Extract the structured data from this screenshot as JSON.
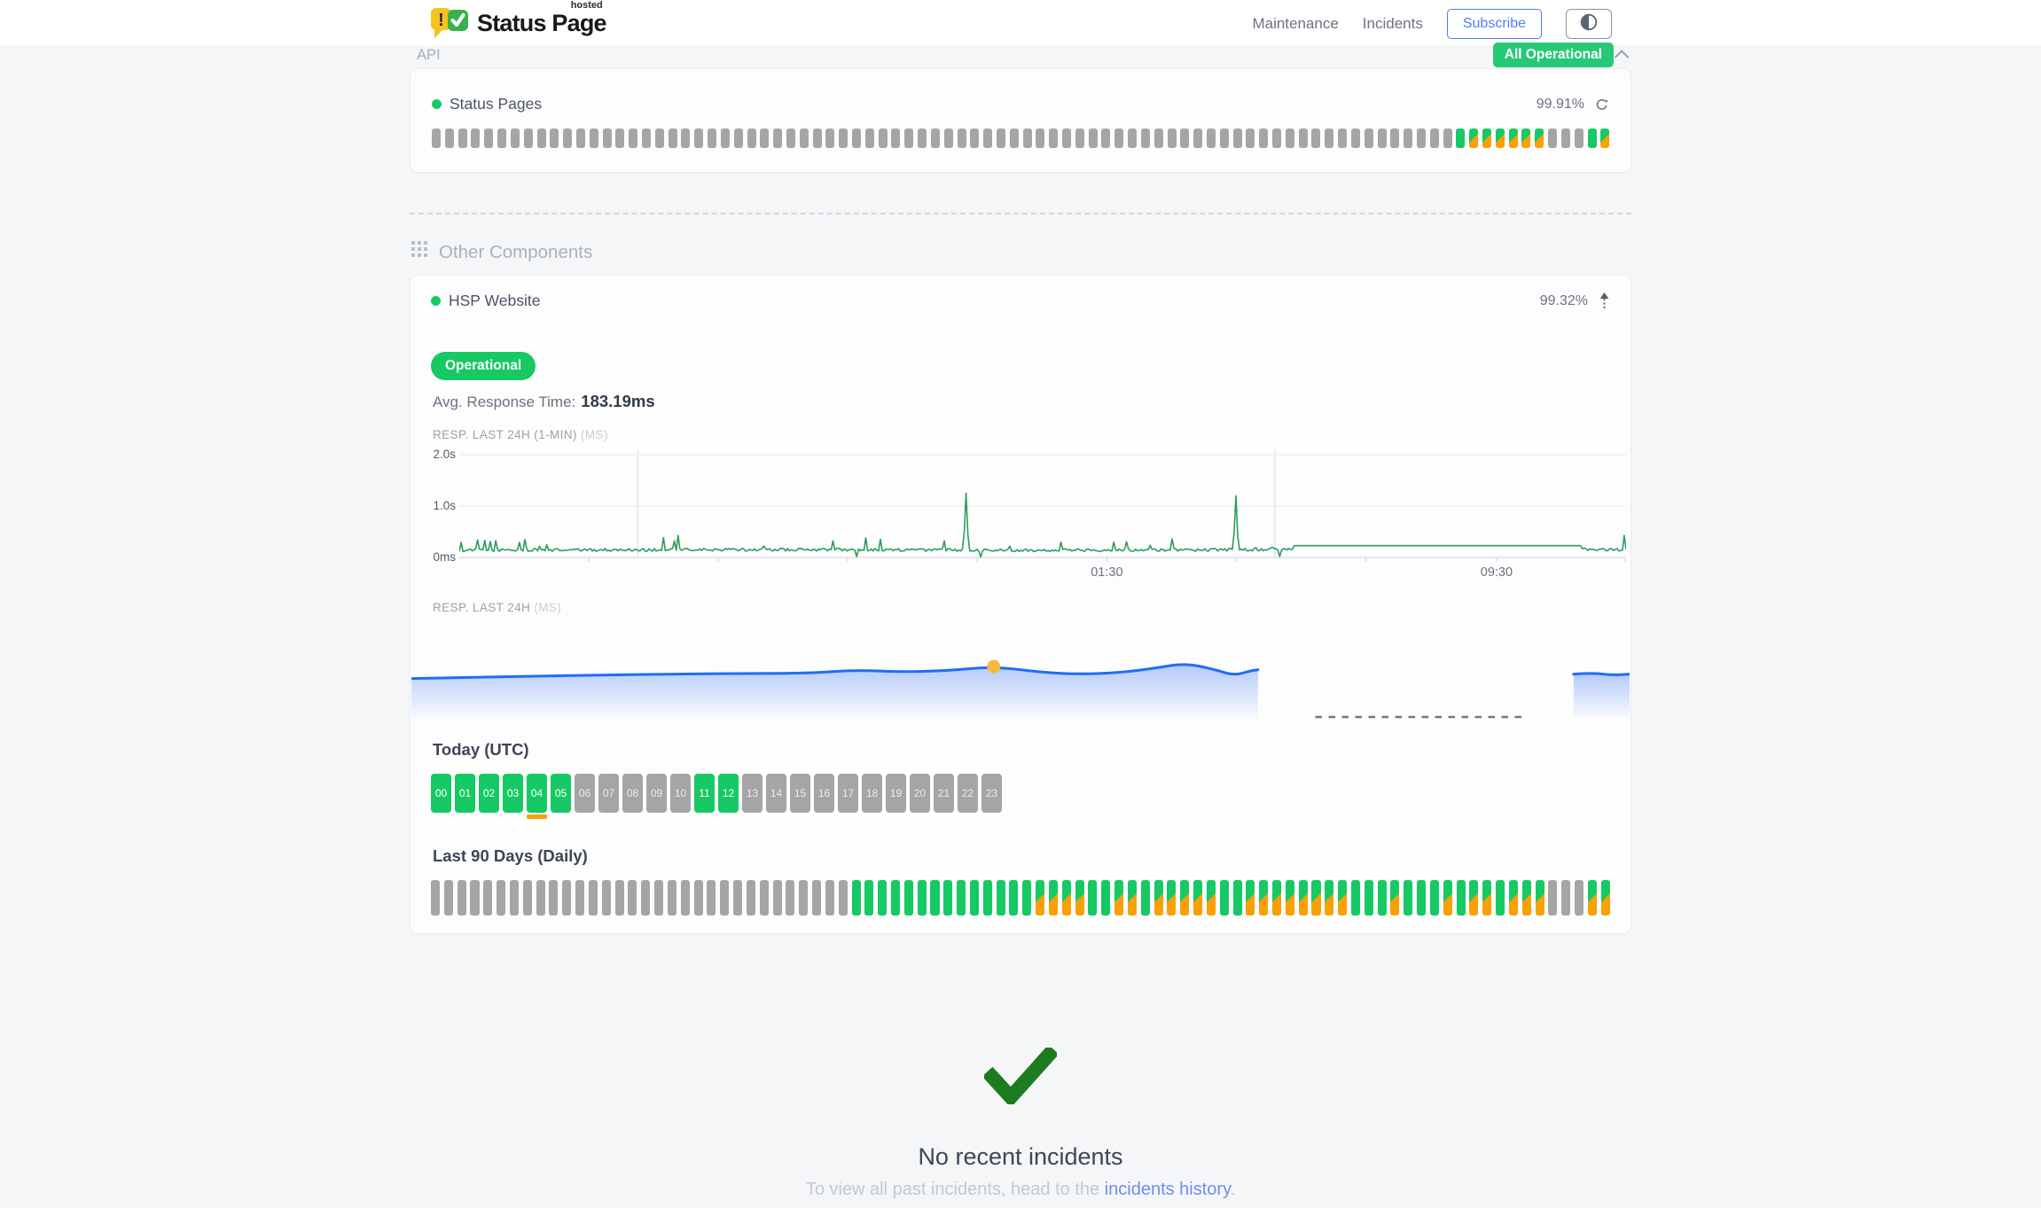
{
  "header": {
    "brand": {
      "name": "Status Page",
      "superscript": "hosted",
      "icon": "dual-speech-bubbles-alert-and-check",
      "icon_colors": {
        "yellow": "#f6c21d",
        "green": "#38b14e"
      }
    },
    "nav": [
      {
        "label": "Maintenance"
      },
      {
        "label": "Incidents"
      }
    ],
    "subscribe_label": "Subscribe",
    "theme_toggle_icon": "half-filled-circle",
    "overall_status": "All Operational",
    "accent_blue": "#4f7df9",
    "badge_green": "#26c975"
  },
  "api_section": {
    "title": "API",
    "collapse_icon": "chevron-up",
    "component": {
      "name": "Status Pages",
      "status_dot_color": "#17c964",
      "uptime": "99.91%",
      "refresh_icon": "refresh-arrow",
      "bar_legend": {
        "x": "no-data",
        "g": "operational",
        "s": "partial-degradation"
      },
      "bar_colors": {
        "gray": "#a5a5a5",
        "green": "#17c964",
        "orange": "#f8a008"
      },
      "bars_rle": [
        [
          "x",
          78
        ],
        [
          "g",
          1
        ],
        [
          "s",
          6
        ],
        [
          "x",
          3
        ],
        [
          "g",
          1
        ],
        [
          "s",
          1
        ]
      ]
    }
  },
  "other_components": {
    "title": "Other Components",
    "icon": "grid",
    "component": {
      "name": "HSP Website",
      "status_dot_color": "#17c964",
      "uptime": "99.32%",
      "expand_icon": "arrow-up-dashed",
      "status_badge": "Operational",
      "avg_response_label": "Avg. Response Time:",
      "avg_response_value": "183.19ms",
      "chart1_label": "RESP. LAST 24H (1-MIN)",
      "chart1_unit": "(MS)",
      "chart2_label": "RESP. LAST 24H",
      "chart2_unit": "(MS)",
      "today_label": "Today (UTC)",
      "hours": [
        {
          "label": "00",
          "state": "up"
        },
        {
          "label": "01",
          "state": "up"
        },
        {
          "label": "02",
          "state": "up"
        },
        {
          "label": "03",
          "state": "up"
        },
        {
          "label": "04",
          "state": "up_degraded"
        },
        {
          "label": "05",
          "state": "up"
        },
        {
          "label": "06",
          "state": "empty"
        },
        {
          "label": "07",
          "state": "empty"
        },
        {
          "label": "08",
          "state": "empty"
        },
        {
          "label": "09",
          "state": "empty"
        },
        {
          "label": "10",
          "state": "empty"
        },
        {
          "label": "11",
          "state": "up"
        },
        {
          "label": "12",
          "state": "up"
        },
        {
          "label": "13",
          "state": "empty"
        },
        {
          "label": "14",
          "state": "empty"
        },
        {
          "label": "15",
          "state": "empty"
        },
        {
          "label": "16",
          "state": "empty"
        },
        {
          "label": "17",
          "state": "empty"
        },
        {
          "label": "18",
          "state": "empty"
        },
        {
          "label": "19",
          "state": "empty"
        },
        {
          "label": "20",
          "state": "empty"
        },
        {
          "label": "21",
          "state": "empty"
        },
        {
          "label": "22",
          "state": "empty"
        },
        {
          "label": "23",
          "state": "empty"
        }
      ],
      "last90_label": "Last 90 Days (Daily)",
      "days_rle": [
        [
          "x",
          32
        ],
        [
          "g",
          14
        ],
        [
          "s",
          4
        ],
        [
          "g",
          2
        ],
        [
          "s",
          2
        ],
        [
          "g",
          1
        ],
        [
          "s",
          5
        ],
        [
          "g",
          2
        ],
        [
          "s",
          8
        ],
        [
          "g",
          3
        ],
        [
          "s",
          1
        ],
        [
          "g",
          3
        ],
        [
          "s",
          1
        ],
        [
          "g",
          1
        ],
        [
          "s",
          2
        ],
        [
          "g",
          1
        ],
        [
          "s",
          3
        ],
        [
          "x",
          3
        ],
        [
          "s",
          2
        ]
      ]
    }
  },
  "incidents": {
    "check_icon_color": "#1c7c1f",
    "title": "No recent incidents",
    "subtitle_prefix": "To view all past incidents, head to the ",
    "link_text": "incidents history",
    "subtitle_suffix": "."
  },
  "chart_data": [
    {
      "id": "resp-last-24h-1min",
      "type": "line",
      "title": "RESP. LAST 24H (1-MIN) (MS)",
      "color": "#2e9b5e",
      "ylim_ms": [
        0,
        2200
      ],
      "yticks": [
        {
          "label": "2.0s",
          "ms": 2000
        },
        {
          "label": "1.0s",
          "ms": 1000
        },
        {
          "label": "0ms",
          "ms": 0
        }
      ],
      "xticks": [
        {
          "label": "01:30",
          "pos": 0.555
        },
        {
          "label": "09:30",
          "pos": 0.889
        }
      ],
      "minor_tick_positions": [
        0.111,
        0.222,
        0.333,
        0.444,
        0.555,
        0.666,
        0.777,
        0.889,
        1.0
      ],
      "vgrid_positions": [
        0.153,
        0.699
      ],
      "grid": true,
      "baseline_profile": [
        [
          0,
          140
        ],
        [
          0.3,
          150
        ],
        [
          0.5,
          140
        ],
        [
          0.71,
          152
        ],
        [
          1,
          150
        ]
      ],
      "noise_ms": 55,
      "burst_noise_ms": 260,
      "flat_segment": {
        "from": 0.715,
        "to": 0.962,
        "ms": 230
      },
      "spikes": [
        {
          "pos": 0.435,
          "ms": 1250
        },
        {
          "pos": 0.665,
          "ms": 1200
        },
        {
          "pos": 0.34,
          "ms": 15
        },
        {
          "pos": 0.447,
          "ms": 10
        },
        {
          "pos": 0.703,
          "ms": 18
        },
        {
          "pos": 0.998,
          "ms": 430
        }
      ]
    },
    {
      "id": "resp-last-24h-daily",
      "type": "area",
      "title": "RESP. LAST 24H (MS)",
      "color": "#1f6ef5",
      "ylim_ms": [
        0,
        400
      ],
      "points": [
        [
          0,
          187
        ],
        [
          0.05,
          193
        ],
        [
          0.1,
          198
        ],
        [
          0.16,
          204
        ],
        [
          0.22,
          209
        ],
        [
          0.28,
          211
        ],
        [
          0.33,
          213
        ],
        [
          0.365,
          228
        ],
        [
          0.4,
          218
        ],
        [
          0.44,
          224
        ],
        [
          0.478,
          244
        ],
        [
          0.515,
          218
        ],
        [
          0.545,
          207
        ],
        [
          0.58,
          214
        ],
        [
          0.61,
          236
        ],
        [
          0.635,
          260
        ],
        [
          0.66,
          229
        ],
        [
          0.675,
          202
        ],
        [
          0.688,
          222
        ],
        [
          0.695,
          229
        ]
      ],
      "marker": {
        "pos": 0.478,
        "ms": 244,
        "color": "#f6b93b"
      },
      "gap_dashed": {
        "from": 0.742,
        "to": 0.912
      },
      "tail_points": [
        [
          0.954,
          208
        ],
        [
          0.97,
          214
        ],
        [
          0.985,
          203
        ],
        [
          1,
          208
        ]
      ]
    }
  ]
}
